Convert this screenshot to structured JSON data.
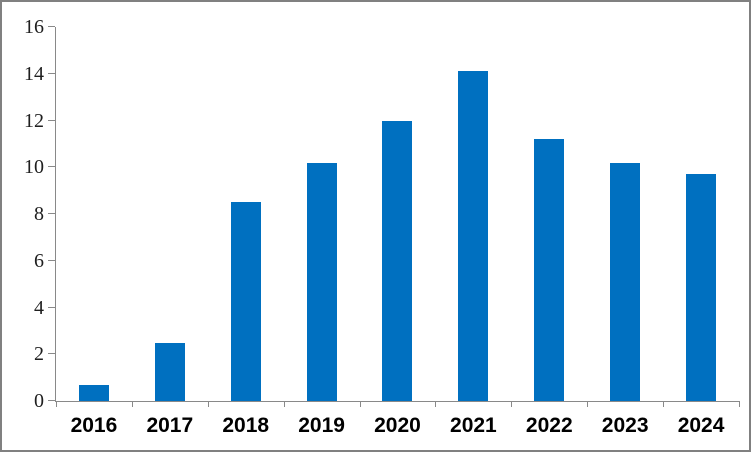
{
  "chart_data": {
    "type": "bar",
    "title": "",
    "xlabel": "",
    "ylabel": "",
    "categories": [
      "2016",
      "2017",
      "2018",
      "2019",
      "2020",
      "2021",
      "2022",
      "2023",
      "2024"
    ],
    "values": [
      0.7,
      2.5,
      8.5,
      10.2,
      12.0,
      14.1,
      11.2,
      10.2,
      9.7
    ],
    "ylim": [
      0,
      16
    ],
    "ytick_step": 2,
    "ytick_labels": [
      "0",
      "2",
      "4",
      "6",
      "8",
      "10",
      "12",
      "14",
      "16"
    ],
    "grid": false,
    "legend": null
  },
  "colors": {
    "bar": "#0070C0",
    "axis": "#898989",
    "tick_label": "#1f1f1f",
    "frame_border": "#808080",
    "background": "#ffffff"
  }
}
